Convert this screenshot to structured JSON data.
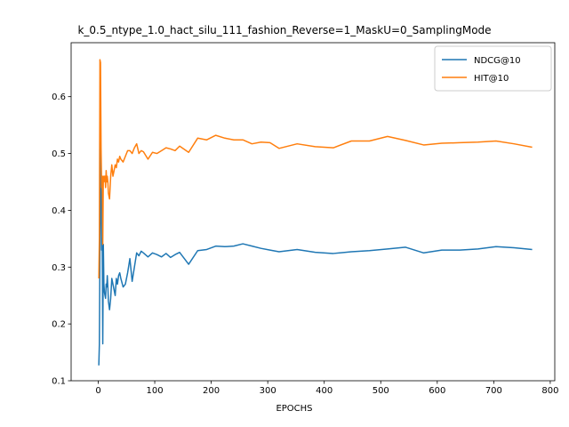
{
  "chart_data": {
    "type": "line",
    "title": "k_0.5_ntype_1.0_hact_silu_111_fashion_Reverse=1_MaskU=0_SamplingMode",
    "xlabel": "EPOCHS",
    "ylabel": "",
    "xlim": [
      -48,
      808
    ],
    "ylim": [
      0.1,
      0.695
    ],
    "xticks": [
      0,
      100,
      200,
      300,
      400,
      500,
      600,
      700,
      800
    ],
    "yticks": [
      0.1,
      0.2,
      0.3,
      0.4,
      0.5,
      0.6
    ],
    "xtick_labels": [
      "0",
      "100",
      "200",
      "300",
      "400",
      "500",
      "600",
      "700",
      "800"
    ],
    "ytick_labels": [
      "0.1",
      "0.2",
      "0.3",
      "0.4",
      "0.5",
      "0.6"
    ],
    "grid": false,
    "legend_position": "top-right",
    "series": [
      {
        "name": "NDCG@10",
        "color": "#1f77b4",
        "x": [
          1,
          2,
          3,
          4,
          5,
          6,
          7,
          8,
          9,
          10,
          11,
          12,
          13,
          14,
          15,
          16,
          17,
          18,
          20,
          22,
          24,
          26,
          28,
          30,
          32,
          34,
          36,
          38,
          40,
          44,
          48,
          52,
          56,
          60,
          64,
          68,
          72,
          76,
          80,
          88,
          96,
          104,
          112,
          120,
          128,
          136,
          144,
          160,
          176,
          192,
          208,
          224,
          240,
          256,
          272,
          288,
          304,
          320,
          352,
          384,
          416,
          448,
          480,
          512,
          544,
          576,
          608,
          640,
          672,
          704,
          736,
          768
        ],
        "y": [
          0.127,
          0.165,
          0.33,
          0.545,
          0.44,
          0.33,
          0.35,
          0.165,
          0.34,
          0.27,
          0.255,
          0.25,
          0.245,
          0.27,
          0.265,
          0.285,
          0.265,
          0.24,
          0.225,
          0.245,
          0.28,
          0.27,
          0.26,
          0.25,
          0.28,
          0.27,
          0.285,
          0.29,
          0.28,
          0.265,
          0.27,
          0.29,
          0.315,
          0.275,
          0.3,
          0.325,
          0.32,
          0.328,
          0.325,
          0.318,
          0.325,
          0.322,
          0.318,
          0.324,
          0.317,
          0.322,
          0.326,
          0.305,
          0.329,
          0.331,
          0.337,
          0.336,
          0.337,
          0.341,
          0.337,
          0.333,
          0.33,
          0.327,
          0.331,
          0.326,
          0.324,
          0.327,
          0.329,
          0.332,
          0.335,
          0.325,
          0.33,
          0.33,
          0.332,
          0.336,
          0.334,
          0.331
        ]
      },
      {
        "name": "HIT@10",
        "color": "#ff7f0e",
        "x": [
          1,
          2,
          3,
          4,
          5,
          6,
          7,
          8,
          9,
          10,
          11,
          12,
          13,
          14,
          15,
          16,
          17,
          18,
          20,
          22,
          24,
          26,
          28,
          30,
          32,
          34,
          36,
          38,
          40,
          44,
          48,
          52,
          56,
          60,
          64,
          68,
          72,
          76,
          80,
          88,
          96,
          104,
          112,
          120,
          128,
          136,
          144,
          160,
          176,
          192,
          208,
          224,
          240,
          256,
          272,
          288,
          304,
          320,
          352,
          384,
          416,
          448,
          480,
          512,
          544,
          576,
          608,
          640,
          672,
          704,
          736,
          768
        ],
        "y": [
          0.28,
          0.35,
          0.665,
          0.66,
          0.51,
          0.44,
          0.46,
          0.34,
          0.46,
          0.45,
          0.46,
          0.46,
          0.44,
          0.47,
          0.45,
          0.46,
          0.45,
          0.43,
          0.42,
          0.46,
          0.48,
          0.46,
          0.47,
          0.48,
          0.475,
          0.49,
          0.485,
          0.495,
          0.49,
          0.485,
          0.495,
          0.505,
          0.505,
          0.5,
          0.51,
          0.517,
          0.5,
          0.505,
          0.503,
          0.49,
          0.502,
          0.5,
          0.505,
          0.51,
          0.508,
          0.505,
          0.513,
          0.502,
          0.527,
          0.524,
          0.532,
          0.527,
          0.524,
          0.524,
          0.517,
          0.52,
          0.519,
          0.509,
          0.517,
          0.512,
          0.51,
          0.522,
          0.522,
          0.53,
          0.523,
          0.515,
          0.518,
          0.519,
          0.52,
          0.522,
          0.517,
          0.511
        ]
      }
    ]
  }
}
